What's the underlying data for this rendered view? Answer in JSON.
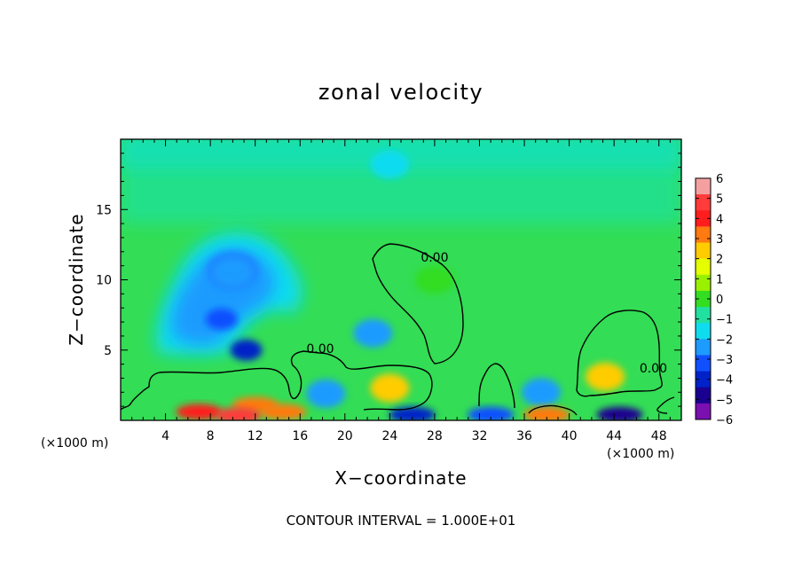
{
  "chart_data": {
    "type": "heatmap",
    "title": "zonal velocity",
    "xlabel": "X−coordinate",
    "ylabel": "Z−coordinate",
    "x_unit": "(×1000 m)",
    "z_unit": "(×1000 m)",
    "xlim": [
      0,
      50
    ],
    "ylim": [
      0,
      20
    ],
    "x_ticks": [
      4,
      8,
      12,
      16,
      20,
      24,
      28,
      32,
      36,
      40,
      44,
      48
    ],
    "y_ticks": [
      5,
      10,
      15
    ],
    "colorbar": {
      "ticks": [
        6,
        5,
        4,
        3,
        2,
        1,
        0,
        -1,
        -2,
        -3,
        -4,
        -5,
        -6
      ],
      "tick_labels": [
        "6",
        "5",
        "4",
        "3",
        "2",
        "1",
        "0",
        "−1",
        "−2",
        "−3",
        "−4",
        "−5",
        "−6"
      ],
      "colors": [
        "#f5a0a0",
        "#ff3b3b",
        "#ff1d1d",
        "#ff7a10",
        "#ffcc00",
        "#e5ff00",
        "#99f000",
        "#33dd22",
        "#22e0a0",
        "#10dcf0",
        "#1e9bff",
        "#1050ff",
        "#0022c8",
        "#1a0090",
        "#7a10b0"
      ]
    },
    "contour_labels": [
      {
        "text": "0.00",
        "x": 28.0,
        "z": 11.3
      },
      {
        "text": "0.00",
        "x": 17.8,
        "z": 4.8
      },
      {
        "text": "0.00",
        "x": 47.5,
        "z": 3.4
      }
    ],
    "footer": "CONTOUR INTERVAL = 1.000E+01",
    "features": [
      {
        "x": 10.0,
        "z": 10.5,
        "v": -2.6
      },
      {
        "x": 9.0,
        "z": 7.2,
        "v": -3.3
      },
      {
        "x": 11.2,
        "z": 5.0,
        "v": -3.9
      },
      {
        "x": 22.5,
        "z": 6.2,
        "v": -2.3
      },
      {
        "x": 24.0,
        "z": 2.3,
        "v": 2.6
      },
      {
        "x": 18.3,
        "z": 1.9,
        "v": -2.6
      },
      {
        "x": 43.2,
        "z": 3.1,
        "v": 2.5
      },
      {
        "x": 37.5,
        "z": 2.0,
        "v": -2.2
      },
      {
        "x": 12.0,
        "z": 1.1,
        "v": 3.5
      },
      {
        "x": 7.0,
        "z": 0.6,
        "v": 4.6
      },
      {
        "x": 10.5,
        "z": 0.35,
        "v": 5.5
      },
      {
        "x": 14.5,
        "z": 0.6,
        "v": 3.8
      },
      {
        "x": 26.0,
        "z": 0.4,
        "v": -4.2
      },
      {
        "x": 44.5,
        "z": 0.4,
        "v": -4.8
      },
      {
        "x": 33.0,
        "z": 0.4,
        "v": -3.8
      },
      {
        "x": 38.0,
        "z": 0.4,
        "v": 3.6
      },
      {
        "x": 28.0,
        "z": 10.0,
        "v": 0.4
      },
      {
        "x": 24.0,
        "z": 18.2,
        "v": -1.3
      }
    ]
  }
}
